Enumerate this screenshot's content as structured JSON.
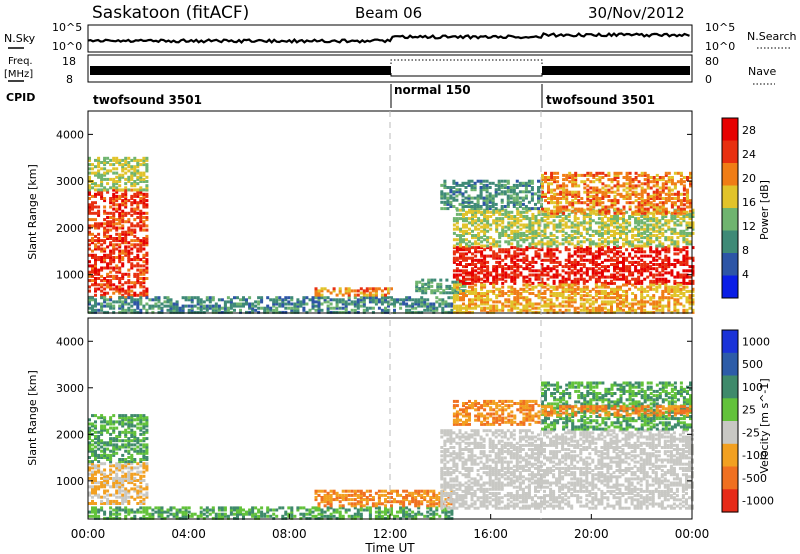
{
  "header": {
    "station": "Saskatoon (fitACF)",
    "beam": "Beam 06",
    "date": "30/Nov/2012"
  },
  "panels": {
    "nsky_label": "N.Sky",
    "nsky_ticks": [
      "10^5",
      "10^0"
    ],
    "nsearch_label": "N.Search",
    "nsearch_ticks": [
      "10^5",
      "10^0"
    ],
    "freq_label_1": "Freq.",
    "freq_label_2": "[MHz]",
    "freq_ticks": [
      "18",
      "8"
    ],
    "nave_label": "Nave",
    "nave_ticks": [
      "80",
      "0"
    ],
    "cpid_label": "CPID",
    "cpid_segments": [
      {
        "label": "twofsound 3501",
        "start_hour": 0,
        "end_hour": 12
      },
      {
        "label": "normal 150",
        "start_hour": 12,
        "end_hour": 18
      },
      {
        "label": "twofsound 3501",
        "start_hour": 18,
        "end_hour": 24
      }
    ]
  },
  "chart_data": [
    {
      "type": "heatmap",
      "name": "power",
      "ylabel": "Slant Range [km]",
      "ylim": [
        180,
        4500
      ],
      "yticks": [
        "1000",
        "2000",
        "3000",
        "4000"
      ],
      "xlim": [
        0,
        24
      ],
      "colorbar_label": "Power [dB]",
      "colorbar_ticks": [
        "4",
        "8",
        "12",
        "16",
        "20",
        "24",
        "28"
      ],
      "colorbar_range": [
        0,
        30
      ],
      "colors": [
        "#0a1ee6",
        "#2d55a6",
        "#3f8a77",
        "#6fb46f",
        "#e1c32a",
        "#f07d16",
        "#e83010",
        "#e60000"
      ],
      "regions": [
        {
          "t": [
            0,
            2.4
          ],
          "r": [
            500,
            2800
          ],
          "level": 24
        },
        {
          "t": [
            0,
            2.4
          ],
          "r": [
            2800,
            3500
          ],
          "level": 14
        },
        {
          "t": [
            0,
            14.5
          ],
          "r": [
            180,
            500
          ],
          "level": 8
        },
        {
          "t": [
            9,
            12
          ],
          "r": [
            550,
            700
          ],
          "level": 20
        },
        {
          "t": [
            13,
            15
          ],
          "r": [
            600,
            900
          ],
          "level": 10
        },
        {
          "t": [
            14.5,
            24
          ],
          "r": [
            800,
            1600
          ],
          "level": 26
        },
        {
          "t": [
            14.5,
            24
          ],
          "r": [
            1600,
            2400
          ],
          "level": 14
        },
        {
          "t": [
            14,
            18
          ],
          "r": [
            2400,
            3000
          ],
          "level": 9
        },
        {
          "t": [
            18,
            24
          ],
          "r": [
            2300,
            3200
          ],
          "level": 20
        },
        {
          "t": [
            14.5,
            24
          ],
          "r": [
            180,
            800
          ],
          "level": 18
        }
      ]
    },
    {
      "type": "heatmap",
      "name": "velocity",
      "ylabel": "Slant Range [km]",
      "ylim": [
        180,
        4500
      ],
      "yticks": [
        "1000",
        "2000",
        "3000",
        "4000"
      ],
      "xlim": [
        0,
        24
      ],
      "xticks": [
        "00:00",
        "04:00",
        "08:00",
        "12:00",
        "16:00",
        "20:00",
        "00:00"
      ],
      "xlabel": "Time UT",
      "colorbar_label": "Velocity [m s^-1]",
      "colorbar_ticks": [
        "1000",
        "500",
        "100",
        "25",
        "-25",
        "-100",
        "-500",
        "-1000"
      ],
      "colors": [
        "#1b33d8",
        "#2d5ca8",
        "#3f8a6b",
        "#62c23a",
        "#c8c8c4",
        "#f2a020",
        "#f07020",
        "#e62a18"
      ],
      "regions": [
        {
          "t": [
            0,
            2.4
          ],
          "r": [
            500,
            1400
          ],
          "level": -25
        },
        {
          "t": [
            0,
            2.4
          ],
          "r": [
            1400,
            2400
          ],
          "level": 100
        },
        {
          "t": [
            0,
            14.5
          ],
          "r": [
            180,
            450
          ],
          "level": 100
        },
        {
          "t": [
            9,
            14.5
          ],
          "r": [
            450,
            800
          ],
          "level": -100
        },
        {
          "t": [
            14,
            24
          ],
          "r": [
            400,
            2100
          ],
          "level": 0
        },
        {
          "t": [
            14.5,
            18
          ],
          "r": [
            2200,
            2700
          ],
          "level": -100
        },
        {
          "t": [
            18,
            24
          ],
          "r": [
            2100,
            3100
          ],
          "level": 100
        },
        {
          "t": [
            18,
            24
          ],
          "r": [
            2400,
            2600
          ],
          "level": -100
        }
      ]
    }
  ]
}
